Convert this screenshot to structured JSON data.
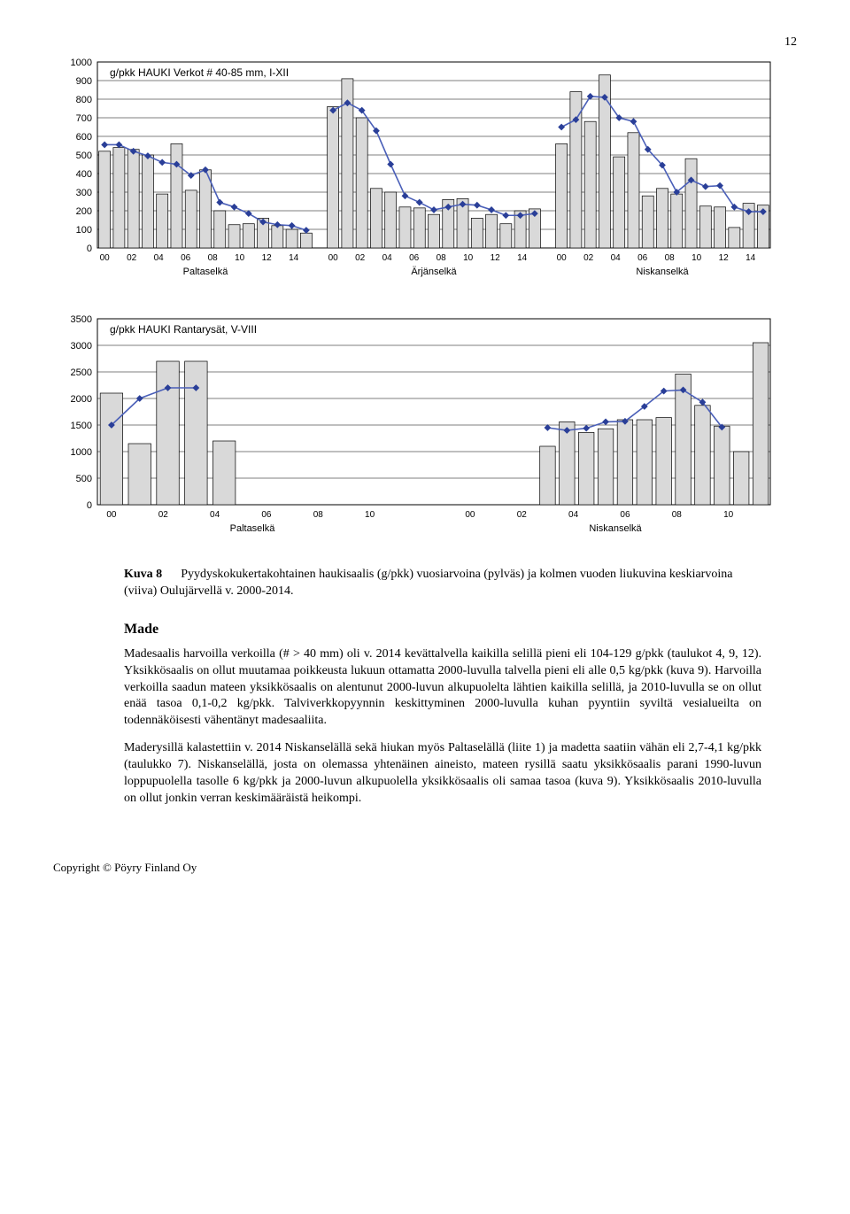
{
  "page_number": "12",
  "chart1": {
    "type": "bar+line",
    "legend": "g/pkk    HAUKI    Verkot # 40-85 mm, I-XII",
    "ylim": [
      0,
      1000
    ],
    "ytick_step": 100,
    "groups": [
      "Paltaselkä",
      "Ärjänselkä",
      "Niskanselkä"
    ],
    "xlabels": [
      "00",
      "02",
      "04",
      "06",
      "08",
      "10",
      "12",
      "14"
    ],
    "bar_color": "#d9d9d9",
    "bar_border": "#000000",
    "line_color": "#4a5fb8",
    "marker_color": "#2a3f98",
    "grid_color": "#000000",
    "background": "#ffffff",
    "series": {
      "Paltaselkä": [
        520,
        540,
        530,
        500,
        290,
        560,
        310,
        420,
        200,
        125,
        130,
        160,
        120,
        100,
        80
      ],
      "Ärjänselkä": [
        760,
        910,
        700,
        320,
        300,
        220,
        215,
        180,
        260,
        265,
        160,
        180,
        130,
        200,
        210
      ],
      "Niskanselkä": [
        560,
        840,
        680,
        930,
        490,
        620,
        280,
        320,
        290,
        480,
        225,
        220,
        110,
        240,
        230
      ]
    },
    "line": {
      "Paltaselkä": [
        555,
        555,
        520,
        495,
        460,
        450,
        390,
        420,
        245,
        220,
        185,
        140,
        125,
        120,
        95
      ],
      "Ärjänselkä": [
        740,
        780,
        740,
        630,
        450,
        280,
        245,
        205,
        220,
        235,
        230,
        205,
        175,
        175,
        185
      ],
      "Niskanselkä": [
        650,
        690,
        815,
        810,
        700,
        680,
        530,
        445,
        300,
        365,
        330,
        335,
        220,
        195,
        195
      ]
    }
  },
  "chart2": {
    "type": "bar+line",
    "legend": "g/pkk    HAUKI    Rantarysät, V-VIII",
    "ylim": [
      0,
      3500
    ],
    "ytick_step": 500,
    "groups": [
      "Paltaselkä",
      "Niskanselkä"
    ],
    "xlabels": [
      "00",
      "02",
      "04",
      "06",
      "08",
      "10"
    ],
    "bar_color": "#d9d9d9",
    "bar_border": "#000000",
    "line_color": "#4a5fb8",
    "marker_color": "#2a3f98",
    "grid_color": "#000000",
    "background": "#ffffff",
    "series": {
      "Paltaselkä": [
        2100,
        1150,
        2700,
        2700,
        1200,
        null,
        null,
        null,
        null,
        null,
        null
      ],
      "Niskanselkä": [
        null,
        null,
        null,
        null,
        1100,
        1560,
        1360,
        1430,
        1600,
        1600,
        1640,
        2460,
        1870,
        1480,
        1000,
        3050
      ]
    },
    "line": {
      "Paltaselkä": [
        1500,
        2000,
        2200,
        2200,
        null,
        null,
        null,
        null,
        null,
        null,
        null
      ],
      "Niskanselkä": [
        null,
        null,
        null,
        null,
        1450,
        1400,
        1440,
        1560,
        1570,
        1850,
        2140,
        2160,
        1930,
        1460,
        null,
        null
      ]
    }
  },
  "caption": {
    "label": "Kuva 8",
    "text": "Pyydyskokukertakohtainen haukisaalis (g/pkk) vuosiarvoina (pylväs) ja kolmen vuoden liukuvina keskiarvoina (viiva) Oulujärvellä v. 2000-2014."
  },
  "subhead": "Made",
  "paragraphs": [
    "Madesaalis harvoilla verkoilla (# > 40 mm) oli v. 2014 kevättalvella kaikilla selillä pieni eli 104-129 g/pkk (taulukot 4, 9, 12). Yksikkösaalis on ollut muutamaa poikkeusta lukuun ottamatta 2000-luvulla talvella pieni eli alle 0,5 kg/pkk (kuva 9). Harvoilla verkoilla saadun mateen yksikkösaalis on alentunut 2000-luvun alkupuolelta lähtien kaikilla selillä, ja 2010-luvulla se on ollut enää tasoa 0,1-0,2 kg/pkk. Talviverkkopyynnin keskittyminen 2000-luvulla kuhan pyyntiin syviltä vesialueilta on todennäköisesti vähentänyt madesaaliita.",
    "Maderysillä kalastettiin v. 2014 Niskanselällä sekä hiukan myös Paltaselällä (liite 1) ja madetta saatiin vähän eli 2,7-4,1 kg/pkk (taulukko 7). Niskanselällä, josta on olemassa yhtenäinen aineisto, mateen rysillä saatu yksikkösaalis parani 1990-luvun loppupuolella tasolle 6 kg/pkk ja 2000-luvun alkupuolella yksikkösaalis oli samaa tasoa (kuva 9). Yksikkösaalis 2010-luvulla on ollut jonkin verran keskimääräistä heikompi."
  ],
  "footer": "Copyright © Pöyry Finland Oy"
}
